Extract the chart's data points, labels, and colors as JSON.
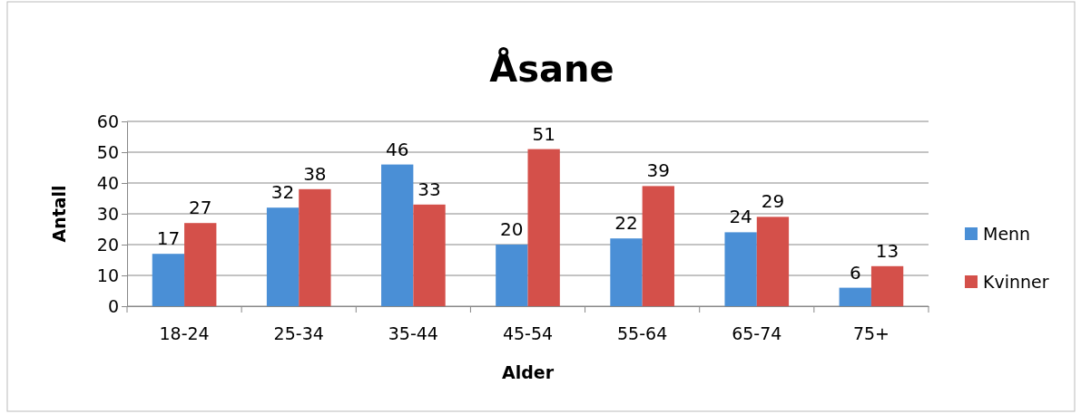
{
  "chart_data": {
    "type": "bar",
    "title": "Åsane",
    "xlabel": "Alder",
    "ylabel": "Antall",
    "categories": [
      "18-24",
      "25-34",
      "35-44",
      "45-54",
      "55-64",
      "65-74",
      "75+"
    ],
    "series": [
      {
        "name": "Menn",
        "color": "#4a8fd6",
        "values": [
          17,
          32,
          46,
          20,
          22,
          24,
          6
        ]
      },
      {
        "name": "Kvinner",
        "color": "#d4504a",
        "values": [
          27,
          38,
          33,
          51,
          39,
          29,
          13
        ]
      }
    ],
    "ylim": [
      0,
      60
    ],
    "yticks": [
      0,
      10,
      20,
      30,
      40,
      50,
      60
    ],
    "grid": "y",
    "legend": "right",
    "data_labels": true
  }
}
